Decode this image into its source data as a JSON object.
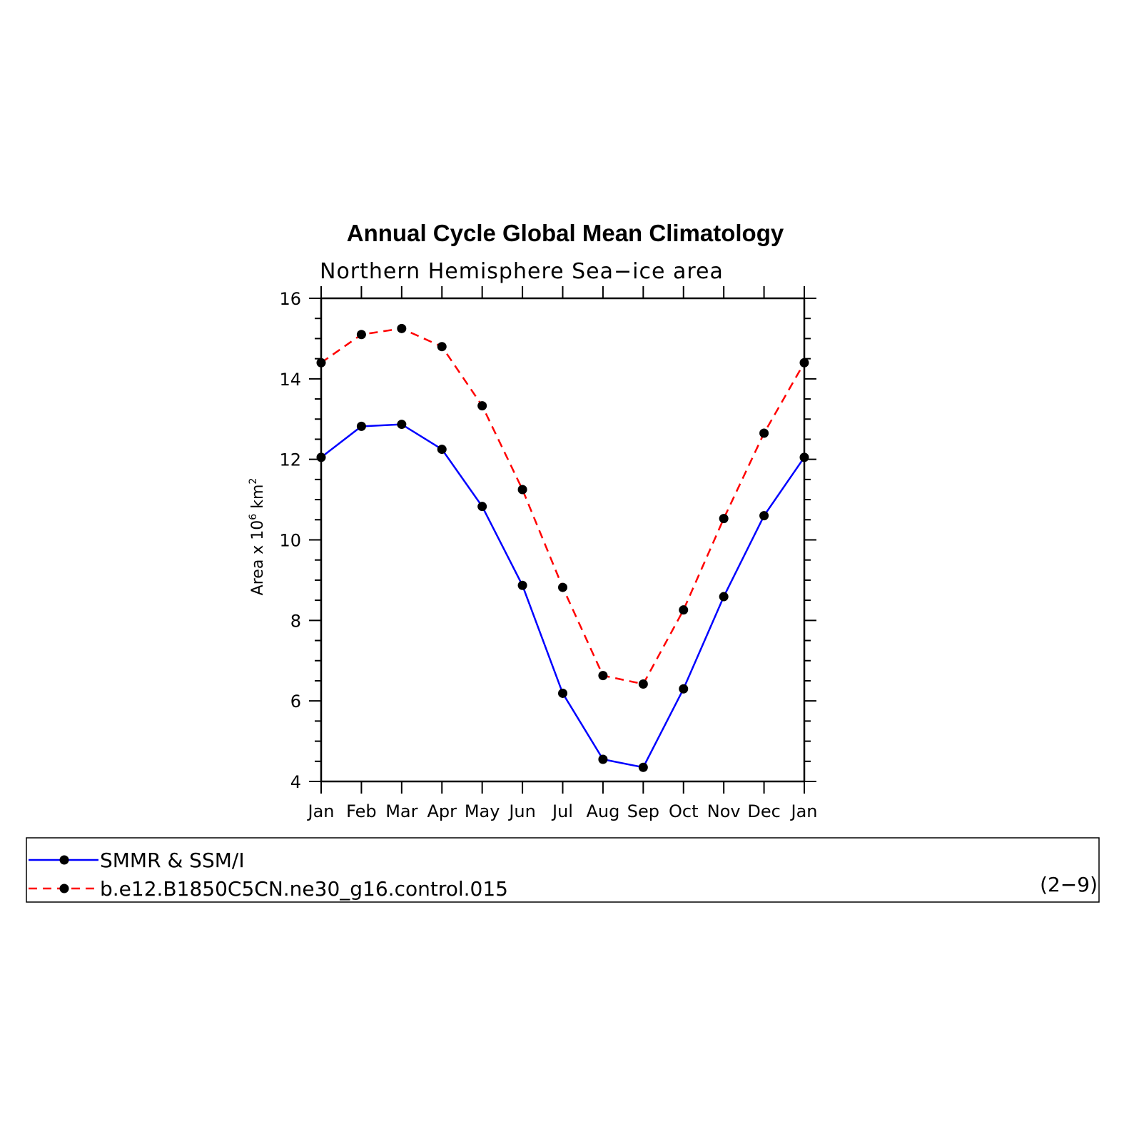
{
  "chart_data": {
    "type": "line",
    "title": "Annual Cycle Global Mean Climatology",
    "subtitle": "Northern Hemisphere Sea−ice area",
    "ylabel": "Area x 10",
    "ylabel_exp": "6",
    "ylabel_unit": " km",
    "ylabel_unit_exp": "2",
    "categories": [
      "Jan",
      "Feb",
      "Mar",
      "Apr",
      "May",
      "Jun",
      "Jul",
      "Aug",
      "Sep",
      "Oct",
      "Nov",
      "Dec",
      "Jan"
    ],
    "ylim": [
      4,
      16
    ],
    "yticks": [
      4,
      6,
      8,
      10,
      12,
      14,
      16
    ],
    "grid": false,
    "legend_position": "bottom",
    "series": [
      {
        "name": "SMMR & SSM/I",
        "color": "#0000ff",
        "style": "solid",
        "values": [
          12.05,
          12.82,
          12.87,
          12.25,
          10.83,
          8.87,
          6.19,
          4.55,
          4.35,
          6.3,
          8.59,
          10.6,
          12.05
        ]
      },
      {
        "name": "b.e12.B1850C5CN.ne30_g16.control.015",
        "color": "#ff0000",
        "style": "dashed",
        "values": [
          14.4,
          15.1,
          15.25,
          14.8,
          13.33,
          11.25,
          8.82,
          6.63,
          6.42,
          8.26,
          10.53,
          12.65,
          14.4
        ]
      }
    ],
    "panel_id": "(2−9)"
  }
}
